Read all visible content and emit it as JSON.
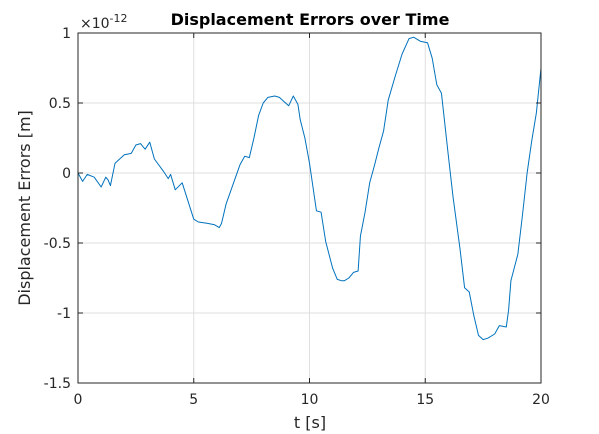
{
  "chart_data": {
    "type": "line",
    "title": "Displacement Errors over Time",
    "xlabel": "t [s]",
    "ylabel": "Displacement Errors [m]",
    "y_exponent": "×10",
    "y_exponent_power": "-12",
    "xlim": [
      0,
      20
    ],
    "ylim": [
      -1.5,
      1
    ],
    "xticks": [
      0,
      5,
      10,
      15,
      20
    ],
    "xtick_labels": [
      "0",
      "5",
      "10",
      "15",
      "20"
    ],
    "yticks": [
      -1.5,
      -1,
      -0.5,
      0,
      0.5,
      1
    ],
    "ytick_labels": [
      "-1.5",
      "-1",
      "-0.5",
      "0",
      "0.5",
      "1"
    ],
    "grid": true,
    "line_color": "#0072BD",
    "series": [
      {
        "x": [
          0,
          0.2,
          0.4,
          0.7,
          1.0,
          1.2,
          1.3,
          1.4,
          1.6,
          1.8,
          2.0,
          2.3,
          2.5,
          2.7,
          2.8,
          2.9,
          3.1,
          3.3,
          3.7,
          3.9,
          4.0,
          4.2,
          4.5,
          5.0,
          5.2,
          5.6,
          5.9,
          6.1,
          6.2,
          6.4,
          6.7,
          7.0,
          7.2,
          7.4,
          7.6,
          7.8,
          8.0,
          8.2,
          8.5,
          8.7,
          8.9,
          9.1,
          9.3,
          9.5,
          9.6,
          9.8,
          10.0,
          10.3,
          10.5,
          10.7,
          11.0,
          11.2,
          11.4,
          11.5,
          11.7,
          11.9,
          12.1,
          12.2,
          12.4,
          12.6,
          12.8,
          13.0,
          13.2,
          13.4,
          13.7,
          14.0,
          14.3,
          14.5,
          14.8,
          15.1,
          15.3,
          15.5,
          15.7,
          16.0,
          16.2,
          16.5,
          16.7,
          16.9,
          17.1,
          17.3,
          17.5,
          17.7,
          18.0,
          18.2,
          18.5,
          18.6,
          18.7,
          19.0,
          19.2,
          19.4,
          19.6,
          19.8,
          20.0
        ],
        "y": [
          0,
          -0.06,
          -0.01,
          -0.03,
          -0.1,
          -0.03,
          -0.05,
          -0.09,
          0.07,
          0.1,
          0.13,
          0.14,
          0.2,
          0.21,
          0.19,
          0.17,
          0.22,
          0.1,
          0.01,
          -0.04,
          -0.01,
          -0.12,
          -0.07,
          -0.33,
          -0.35,
          -0.36,
          -0.37,
          -0.39,
          -0.36,
          -0.22,
          -0.08,
          0.06,
          0.12,
          0.11,
          0.25,
          0.41,
          0.5,
          0.54,
          0.55,
          0.54,
          0.51,
          0.48,
          0.55,
          0.49,
          0.38,
          0.25,
          0.07,
          -0.27,
          -0.28,
          -0.49,
          -0.68,
          -0.76,
          -0.77,
          -0.77,
          -0.75,
          -0.71,
          -0.7,
          -0.45,
          -0.28,
          -0.07,
          0.05,
          0.18,
          0.3,
          0.52,
          0.69,
          0.85,
          0.96,
          0.97,
          0.94,
          0.93,
          0.82,
          0.63,
          0.57,
          0.12,
          -0.17,
          -0.54,
          -0.82,
          -0.85,
          -1.02,
          -1.16,
          -1.19,
          -1.18,
          -1.15,
          -1.09,
          -1.1,
          -0.98,
          -0.77,
          -0.58,
          -0.3,
          0,
          0.23,
          0.43,
          0.75
        ]
      }
    ]
  }
}
